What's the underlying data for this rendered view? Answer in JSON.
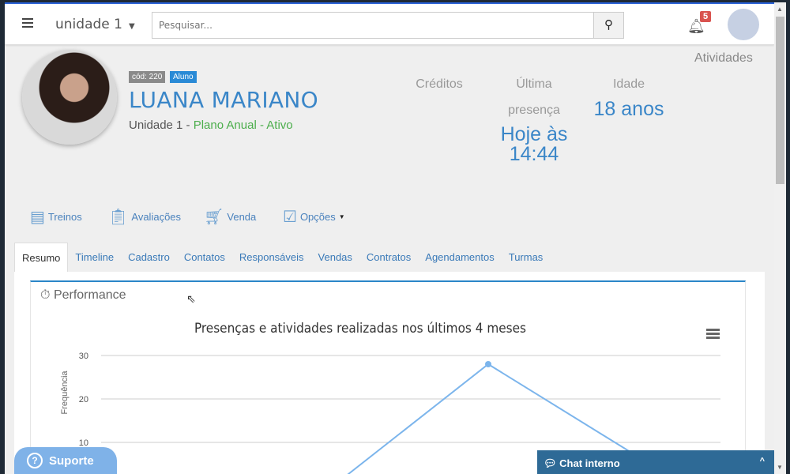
{
  "topbar": {
    "unit": "unidade 1",
    "search_placeholder": "Pesquisar...",
    "notifications": "5"
  },
  "atividades": "Atividades",
  "profile": {
    "code": "cód: 220",
    "role": "Aluno",
    "name": "LUANA MARIANO",
    "unit": "Unidade 1 - ",
    "plan": "Plano Anual - Ativo"
  },
  "stats": {
    "creditos_label": "Créditos",
    "ultima_label1": "Última",
    "ultima_label2": "presença",
    "ultima_value1": "Hoje às",
    "ultima_value2": "14:44",
    "idade_label": "Idade",
    "idade_value": "18 anos"
  },
  "actions": [
    {
      "label": "Treinos",
      "icon": "workout-icon"
    },
    {
      "label": "Avaliações",
      "icon": "clipboard-heart-icon"
    },
    {
      "label": "Venda",
      "icon": "cart-icon"
    },
    {
      "label": "Opções",
      "icon": "checklist-icon"
    }
  ],
  "tabs": [
    "Resumo",
    "Timeline",
    "Cadastro",
    "Contatos",
    "Responsáveis",
    "Vendas",
    "Contratos",
    "Agendamentos",
    "Turmas"
  ],
  "panel": {
    "title": "Performance"
  },
  "chart_data": {
    "type": "line",
    "title": "Presenças e atividades realizadas nos últimos 4 meses",
    "ylabel": "Frequência",
    "yticks": [
      10,
      20,
      30
    ],
    "ylim": [
      0,
      30
    ],
    "grid": true,
    "color": "#7cb5ec",
    "values": [
      null,
      0,
      28,
      6
    ]
  },
  "support": "Suporte",
  "chat": "Chat interno",
  "colors": {
    "accent": "#3a86c8",
    "active": "#4cae4c",
    "badge": "#d9534f"
  }
}
